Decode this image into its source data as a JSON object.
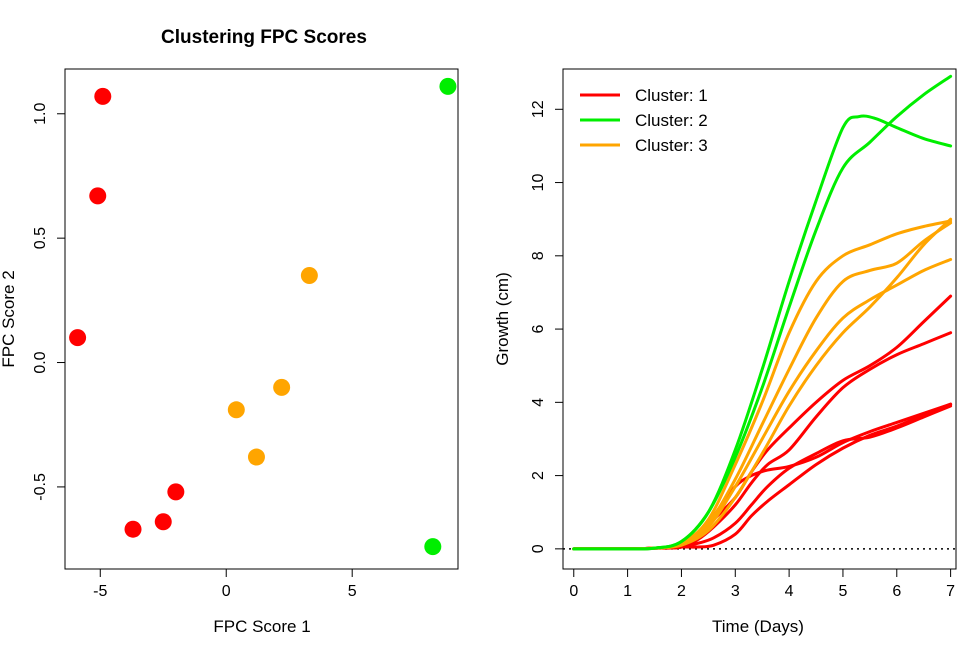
{
  "colors": {
    "cluster_1": "#ff0000",
    "cluster_2": "#00ee00",
    "cluster_3": "#ffa500",
    "axis": "#000000"
  },
  "chart_data": [
    {
      "type": "scatter",
      "title": "Clustering FPC Scores",
      "xlabel": "FPC Score 1",
      "ylabel": "FPC Score 2",
      "xlim": [
        -6.4,
        9.2
      ],
      "ylim": [
        -0.83,
        1.18
      ],
      "xticks": [
        -5,
        0,
        5
      ],
      "xtick_labels": [
        "-5",
        "0",
        "5"
      ],
      "yticks": [
        -0.5,
        0.0,
        0.5,
        1.0
      ],
      "ytick_labels": [
        "-0.5",
        "0.0",
        "0.5",
        "1.0"
      ],
      "grid": false,
      "series": [
        {
          "cluster": 1,
          "color": "#ff0000",
          "points": [
            [
              -4.9,
              1.07
            ],
            [
              -5.1,
              0.67
            ],
            [
              -5.9,
              0.1
            ],
            [
              -2.0,
              -0.52
            ],
            [
              -2.5,
              -0.64
            ],
            [
              -3.7,
              -0.67
            ]
          ]
        },
        {
          "cluster": 2,
          "color": "#00ee00",
          "points": [
            [
              8.8,
              1.11
            ],
            [
              8.2,
              -0.74
            ]
          ]
        },
        {
          "cluster": 3,
          "color": "#ffa500",
          "points": [
            [
              3.3,
              0.35
            ],
            [
              2.2,
              -0.1
            ],
            [
              0.4,
              -0.19
            ],
            [
              1.2,
              -0.38
            ]
          ]
        }
      ]
    },
    {
      "type": "line",
      "title": "",
      "xlabel": "Time (Days)",
      "ylabel": "Growth (cm)",
      "xlim": [
        -0.2,
        7.1
      ],
      "ylim": [
        -0.55,
        13.1
      ],
      "xticks": [
        0,
        1,
        2,
        3,
        4,
        5,
        6,
        7
      ],
      "xtick_labels": [
        "0",
        "1",
        "2",
        "3",
        "4",
        "5",
        "6",
        "7"
      ],
      "yticks": [
        0,
        2,
        4,
        6,
        8,
        10,
        12
      ],
      "ytick_labels": [
        "0",
        "2",
        "4",
        "6",
        "8",
        "10",
        "12"
      ],
      "grid": false,
      "reference_line": {
        "y": 0,
        "style": "dotted"
      },
      "legend": {
        "position": "top-left",
        "entries": [
          {
            "label": "Cluster: 1",
            "color": "#ff0000"
          },
          {
            "label": "Cluster: 2",
            "color": "#00ee00"
          },
          {
            "label": "Cluster: 3",
            "color": "#ffa500"
          }
        ]
      },
      "series": [
        {
          "cluster": 1,
          "color": "#ff0000",
          "x": [
            0,
            1,
            1.5,
            2,
            2.3,
            2.6,
            3,
            3.3,
            3.6,
            4,
            4.5,
            5,
            5.5,
            6,
            6.5,
            7
          ],
          "y": [
            0,
            0,
            0.02,
            0.05,
            0.3,
            0.9,
            1.7,
            2.0,
            2.15,
            2.25,
            2.5,
            2.9,
            3.2,
            3.45,
            3.7,
            3.95
          ]
        },
        {
          "cluster": 1,
          "color": "#ff0000",
          "x": [
            0,
            1,
            1.5,
            2,
            2.3,
            2.6,
            3,
            3.3,
            3.6,
            4,
            4.5,
            5,
            5.5,
            6,
            6.5,
            7
          ],
          "y": [
            0,
            0,
            0.02,
            0.05,
            0.3,
            0.8,
            1.4,
            2.1,
            2.7,
            3.3,
            4.0,
            4.6,
            5.0,
            5.5,
            6.2,
            6.9
          ]
        },
        {
          "cluster": 1,
          "color": "#ff0000",
          "x": [
            0,
            1,
            1.5,
            2,
            2.3,
            2.6,
            3,
            3.3,
            3.6,
            4,
            4.5,
            5,
            5.5,
            6,
            6.5,
            7
          ],
          "y": [
            0,
            0,
            0.02,
            0.05,
            0.25,
            0.6,
            1.2,
            1.8,
            2.3,
            2.7,
            3.6,
            4.4,
            4.9,
            5.3,
            5.6,
            5.9
          ]
        },
        {
          "cluster": 1,
          "color": "#ff0000",
          "x": [
            0,
            1,
            1.5,
            2,
            2.3,
            2.6,
            3,
            3.3,
            3.6,
            4,
            4.5,
            5,
            5.5,
            6,
            6.5,
            7
          ],
          "y": [
            0,
            0,
            0.02,
            0.05,
            0.15,
            0.3,
            0.7,
            1.2,
            1.7,
            2.2,
            2.6,
            2.95,
            3.05,
            3.3,
            3.6,
            3.9
          ]
        },
        {
          "cluster": 1,
          "color": "#ff0000",
          "x": [
            0,
            1,
            1.5,
            2,
            2.3,
            2.6,
            3,
            3.3,
            3.6,
            4,
            4.5,
            5,
            5.5,
            6,
            6.5,
            7
          ],
          "y": [
            0,
            0,
            0.02,
            0.05,
            0.05,
            0.1,
            0.4,
            0.9,
            1.3,
            1.75,
            2.3,
            2.75,
            3.1,
            3.35,
            3.65,
            3.95
          ]
        },
        {
          "cluster": 2,
          "color": "#00ee00",
          "x": [
            0,
            1,
            1.5,
            2,
            2.5,
            3,
            3.5,
            4,
            4.5,
            5,
            5.3,
            5.6,
            6,
            6.5,
            7
          ],
          "y": [
            0,
            0,
            0.02,
            0.2,
            1.0,
            2.7,
            4.9,
            7.3,
            9.5,
            11.5,
            11.8,
            11.75,
            11.5,
            11.2,
            11.0
          ]
        },
        {
          "cluster": 2,
          "color": "#00ee00",
          "x": [
            0,
            1,
            1.5,
            2,
            2.5,
            3,
            3.5,
            4,
            4.5,
            5,
            5.5,
            6,
            6.5,
            7
          ],
          "y": [
            0,
            0,
            0.02,
            0.2,
            1.0,
            2.5,
            4.4,
            6.6,
            8.7,
            10.4,
            11.1,
            11.8,
            12.4,
            12.9
          ]
        },
        {
          "cluster": 3,
          "color": "#ffa500",
          "x": [
            0,
            1,
            1.5,
            2,
            2.5,
            3,
            3.5,
            4,
            4.5,
            5,
            5.5,
            6,
            6.5,
            7
          ],
          "y": [
            0,
            0,
            0.02,
            0.15,
            0.8,
            2.3,
            4.0,
            5.9,
            7.3,
            8.0,
            8.3,
            8.6,
            8.8,
            8.95
          ]
        },
        {
          "cluster": 3,
          "color": "#ffa500",
          "x": [
            0,
            1,
            1.5,
            2,
            2.5,
            3,
            3.5,
            4,
            4.5,
            5,
            5.5,
            6,
            6.5,
            7
          ],
          "y": [
            0,
            0,
            0.02,
            0.15,
            0.7,
            1.9,
            3.4,
            4.9,
            6.3,
            7.3,
            7.6,
            7.8,
            8.4,
            8.9
          ]
        },
        {
          "cluster": 3,
          "color": "#ffa500",
          "x": [
            0,
            1,
            1.5,
            2,
            2.5,
            3,
            3.5,
            4,
            4.5,
            5,
            5.5,
            6,
            6.5,
            7
          ],
          "y": [
            0,
            0,
            0.02,
            0.12,
            0.6,
            1.7,
            3.0,
            4.3,
            5.4,
            6.3,
            6.8,
            7.2,
            7.6,
            7.9
          ]
        },
        {
          "cluster": 3,
          "color": "#ffa500",
          "x": [
            0,
            1,
            1.5,
            2,
            2.5,
            3,
            3.5,
            4,
            4.5,
            5,
            5.5,
            6,
            6.5,
            7
          ],
          "y": [
            0,
            0,
            0.02,
            0.1,
            0.5,
            1.4,
            2.6,
            3.9,
            5.0,
            5.9,
            6.6,
            7.4,
            8.3,
            9.0
          ]
        }
      ]
    }
  ]
}
